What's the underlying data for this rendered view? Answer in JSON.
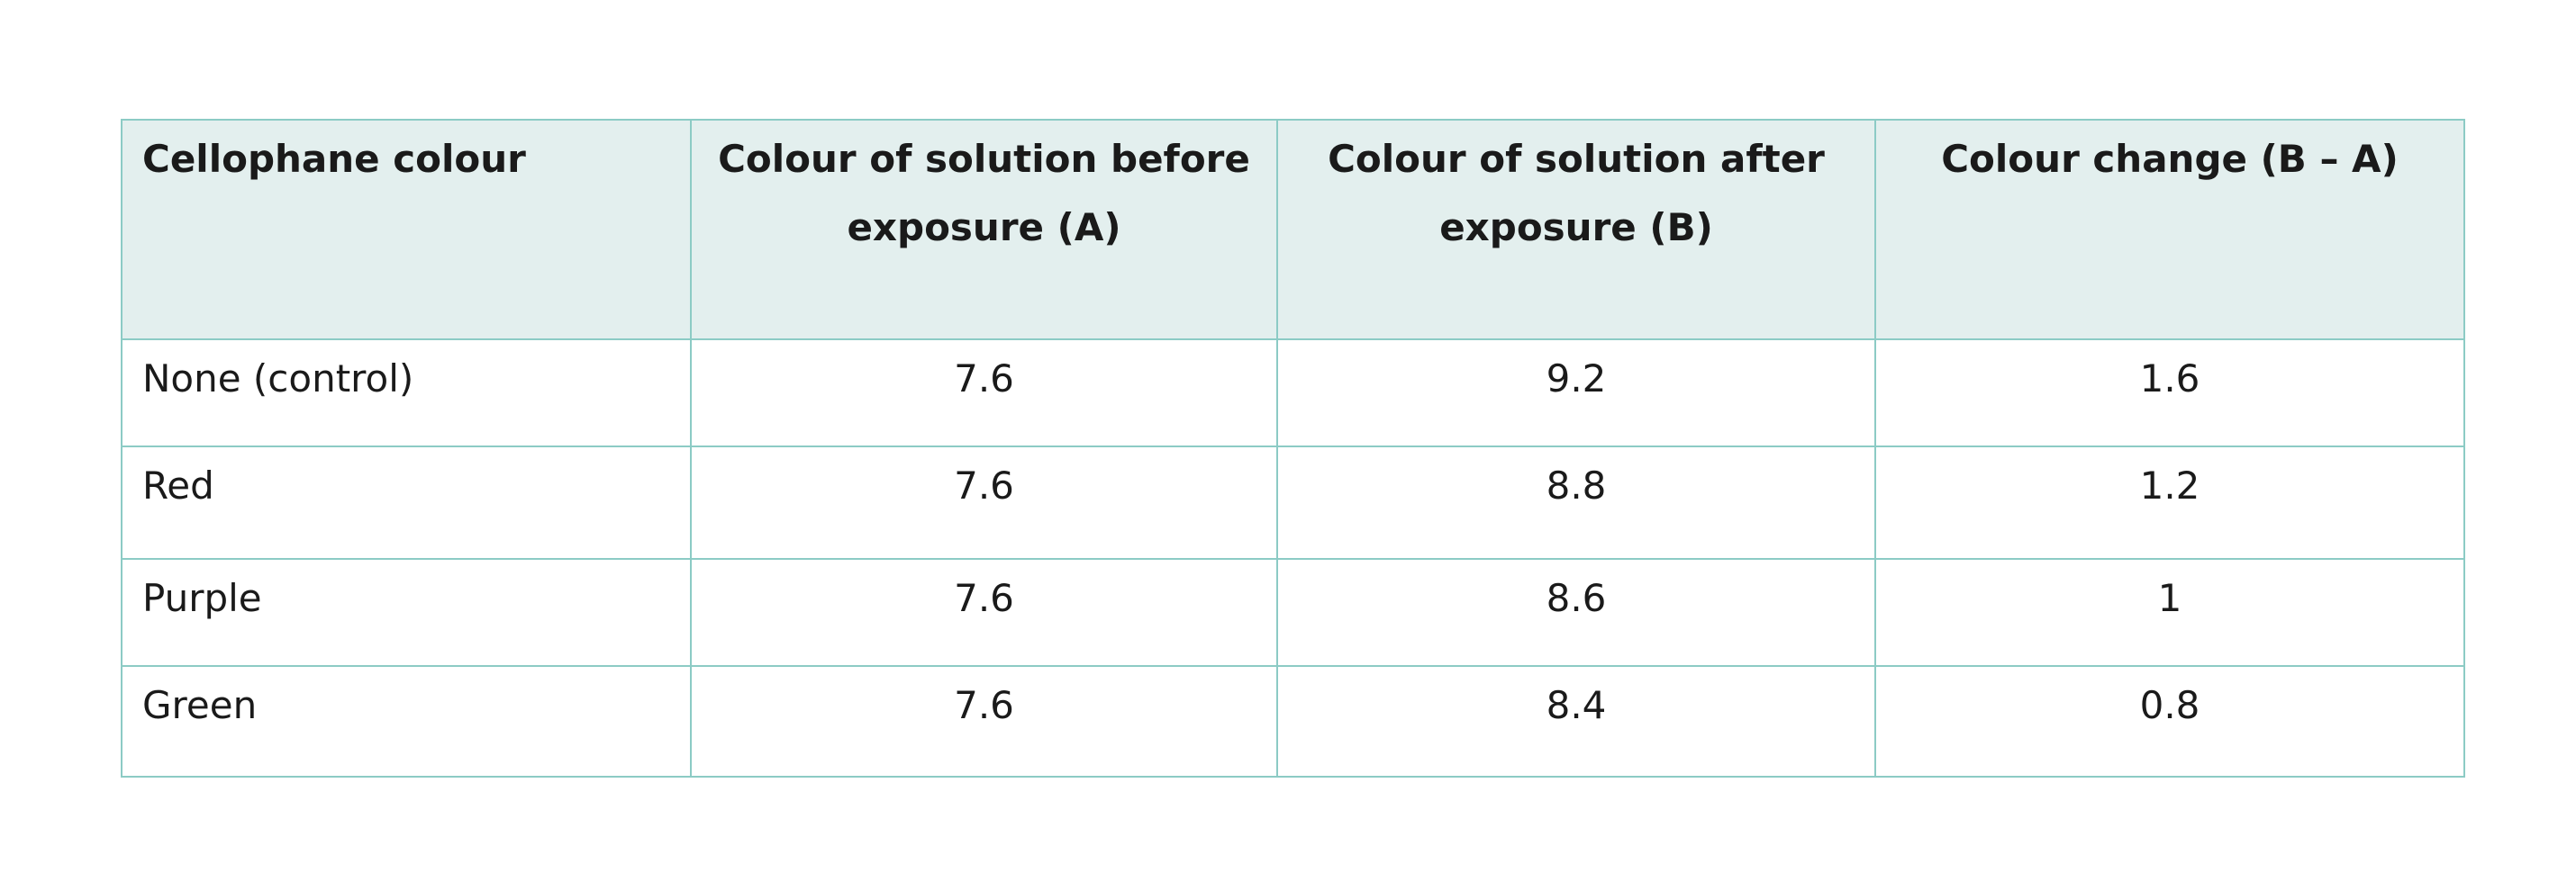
{
  "table": {
    "header": [
      "Cellophane colour",
      "Colour of solution before exposure (A)",
      "Colour of solution after exposure (B)",
      "Colour change (B – A)"
    ],
    "rows": [
      [
        "None (control)",
        7.6,
        9.2,
        1.6
      ],
      [
        "Red",
        7.6,
        8.8,
        1.2
      ],
      [
        "Purple",
        7.6,
        8.6,
        1
      ],
      [
        "Green",
        7.6,
        8.4,
        0.8
      ]
    ]
  }
}
